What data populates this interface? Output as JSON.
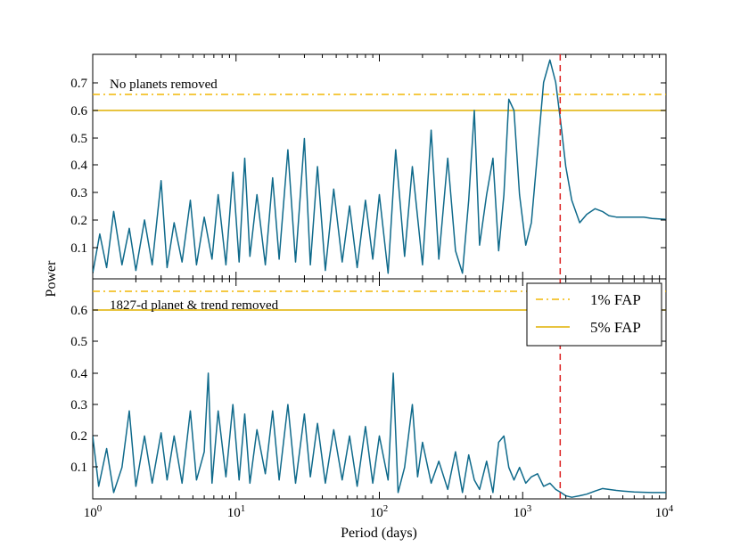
{
  "chart_data": {
    "type": "line",
    "title": "",
    "xlabel": "Period (days)",
    "ylabel": "Power",
    "xscale": "log",
    "xlim": [
      1,
      10000
    ],
    "x_ticks": [
      {
        "base": "10",
        "exp": "0"
      },
      {
        "base": "10",
        "exp": "1"
      },
      {
        "base": "10",
        "exp": "2"
      },
      {
        "base": "10",
        "exp": "3"
      },
      {
        "base": "10",
        "exp": "4"
      }
    ],
    "marked_period": 1827,
    "panels": [
      {
        "annotation": "No planets removed",
        "ylim": [
          0,
          0.8
        ],
        "y_ticks": [
          "0.1",
          "0.2",
          "0.3",
          "0.4",
          "0.5",
          "0.6",
          "0.7"
        ],
        "fap_1pct": 0.655,
        "fap_5pct": 0.6,
        "series": {
          "name": "periodogram",
          "x": [
            1.0,
            1.12,
            1.25,
            1.4,
            1.6,
            1.8,
            2.0,
            2.3,
            2.6,
            3.0,
            3.3,
            3.7,
            4.2,
            4.8,
            5.3,
            6.0,
            6.8,
            7.5,
            8.5,
            9.5,
            10.5,
            11.5,
            12.5,
            14.0,
            16.0,
            18.0,
            20.0,
            23.0,
            26.0,
            30.0,
            33.0,
            37.0,
            42.0,
            48.0,
            55.0,
            62.0,
            70.0,
            80.0,
            90.0,
            100.0,
            115.0,
            130.0,
            150.0,
            170.0,
            200.0,
            230.0,
            260.0,
            300.0,
            340.0,
            380.0,
            420.0,
            460.0,
            500.0,
            560.0,
            620.0,
            680.0,
            740.0,
            800.0,
            870.0,
            950.0,
            1050.0,
            1150.0,
            1270.0,
            1400.0,
            1550.0,
            1700.0,
            1850.0,
            2000.0,
            2200.0,
            2500.0,
            2800.0,
            3200.0,
            3600.0,
            4000.0,
            4500.0,
            5000.0,
            6000.0,
            7000.0,
            8000.0,
            10000.0
          ],
          "y": [
            0.02,
            0.16,
            0.04,
            0.24,
            0.05,
            0.18,
            0.03,
            0.21,
            0.05,
            0.35,
            0.04,
            0.2,
            0.06,
            0.28,
            0.05,
            0.22,
            0.07,
            0.3,
            0.05,
            0.38,
            0.06,
            0.43,
            0.08,
            0.3,
            0.05,
            0.36,
            0.07,
            0.46,
            0.06,
            0.5,
            0.05,
            0.4,
            0.03,
            0.32,
            0.06,
            0.26,
            0.04,
            0.28,
            0.07,
            0.3,
            0.02,
            0.46,
            0.08,
            0.4,
            0.05,
            0.53,
            0.07,
            0.43,
            0.1,
            0.02,
            0.28,
            0.6,
            0.12,
            0.3,
            0.43,
            0.1,
            0.3,
            0.64,
            0.6,
            0.3,
            0.12,
            0.2,
            0.45,
            0.7,
            0.78,
            0.7,
            0.55,
            0.4,
            0.28,
            0.2,
            0.23,
            0.25,
            0.24,
            0.225,
            0.22,
            0.22,
            0.22,
            0.22,
            0.215,
            0.212
          ]
        }
      },
      {
        "annotation": "1827-d planet & trend removed",
        "ylim": [
          0,
          0.7
        ],
        "y_ticks": [
          "0.1",
          "0.2",
          "0.3",
          "0.4",
          "0.5",
          "0.6"
        ],
        "fap_1pct": 0.655,
        "fap_5pct": 0.6,
        "series": {
          "name": "periodogram-residual",
          "x": [
            1.0,
            1.1,
            1.25,
            1.4,
            1.6,
            1.8,
            2.0,
            2.3,
            2.6,
            3.0,
            3.3,
            3.7,
            4.2,
            4.8,
            5.3,
            6.0,
            6.4,
            6.8,
            7.5,
            8.5,
            9.5,
            10.5,
            11.5,
            12.5,
            14.0,
            16.0,
            18.0,
            20.0,
            23.0,
            26.0,
            30.0,
            33.0,
            37.0,
            42.0,
            48.0,
            55.0,
            62.0,
            70.0,
            80.0,
            90.0,
            100.0,
            115.0,
            125.0,
            135.0,
            150.0,
            170.0,
            185.0,
            200.0,
            230.0,
            260.0,
            300.0,
            340.0,
            380.0,
            420.0,
            460.0,
            500.0,
            560.0,
            620.0,
            680.0,
            740.0,
            800.0,
            870.0,
            950.0,
            1050.0,
            1150.0,
            1270.0,
            1400.0,
            1550.0,
            1700.0,
            1850.0,
            2000.0,
            2200.0,
            2500.0,
            2800.0,
            3200.0,
            3600.0,
            4000.0,
            4500.0,
            5000.0,
            6000.0,
            7000.0,
            8000.0,
            10000.0
          ],
          "y": [
            0.2,
            0.04,
            0.16,
            0.02,
            0.1,
            0.28,
            0.04,
            0.2,
            0.05,
            0.21,
            0.06,
            0.2,
            0.05,
            0.28,
            0.06,
            0.15,
            0.4,
            0.05,
            0.28,
            0.07,
            0.3,
            0.06,
            0.27,
            0.05,
            0.22,
            0.08,
            0.28,
            0.06,
            0.3,
            0.05,
            0.27,
            0.07,
            0.24,
            0.05,
            0.22,
            0.06,
            0.2,
            0.04,
            0.23,
            0.05,
            0.2,
            0.06,
            0.4,
            0.02,
            0.1,
            0.3,
            0.07,
            0.18,
            0.05,
            0.12,
            0.03,
            0.15,
            0.02,
            0.14,
            0.06,
            0.03,
            0.12,
            0.02,
            0.18,
            0.2,
            0.1,
            0.06,
            0.1,
            0.05,
            0.07,
            0.08,
            0.04,
            0.05,
            0.03,
            0.02,
            0.01,
            0.005,
            0.01,
            0.015,
            0.025,
            0.033,
            0.03,
            0.027,
            0.025,
            0.022,
            0.021,
            0.02,
            0.02
          ]
        }
      }
    ],
    "legend": {
      "location": "top-right of lower panel",
      "entries": [
        {
          "label": "1% FAP",
          "style": "dash-dot",
          "color": "#f2b705"
        },
        {
          "label": "5% FAP",
          "style": "solid",
          "color": "#e0b000"
        }
      ]
    },
    "colors": {
      "series": "#0f6a8b",
      "fap_1pct": "#f2b705",
      "fap_5pct": "#e0b000",
      "marker": "#dd2222"
    }
  }
}
